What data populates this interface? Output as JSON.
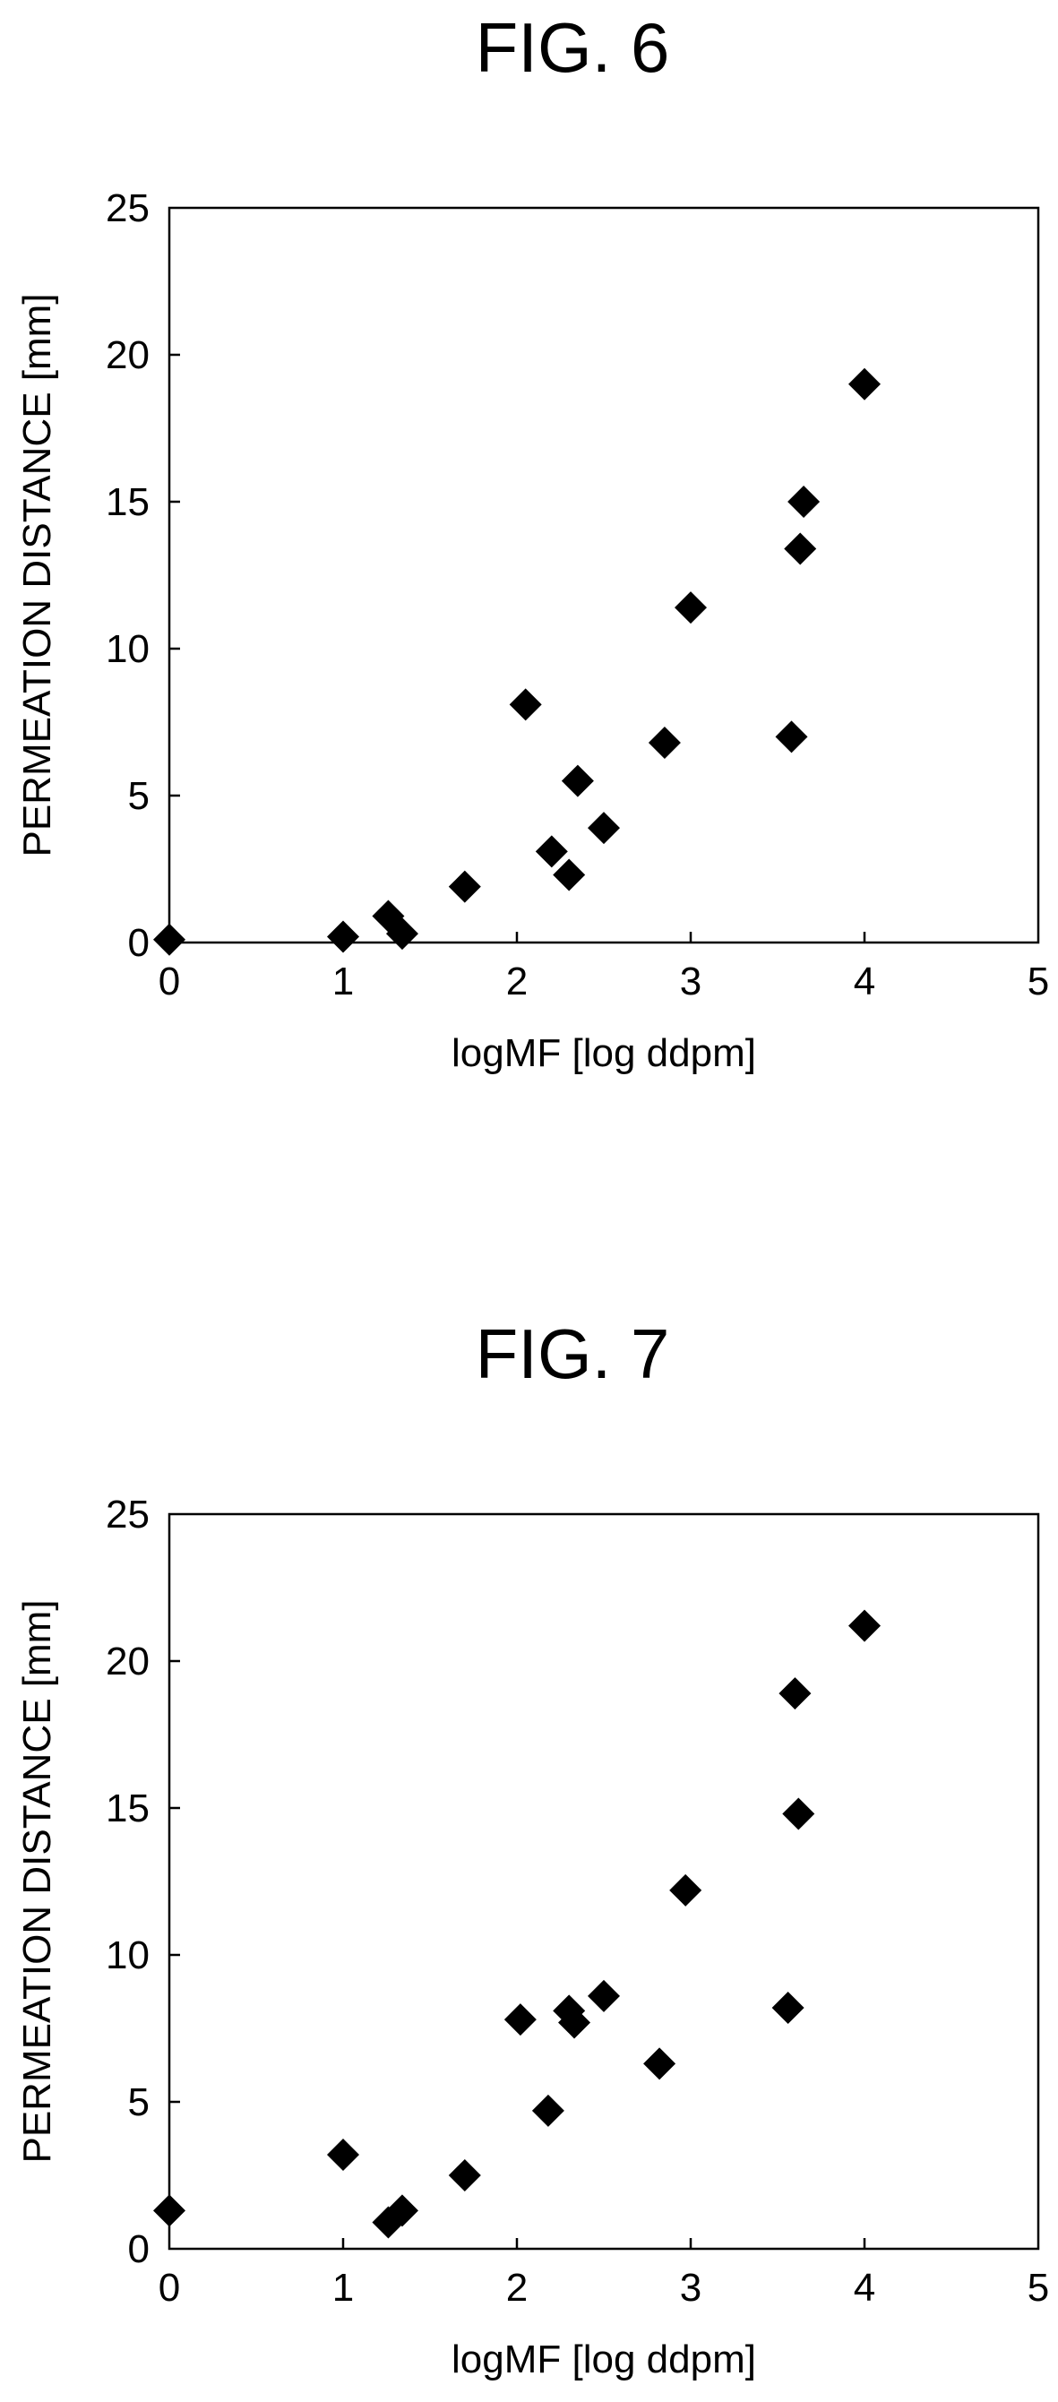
{
  "chart_data": [
    {
      "type": "scatter",
      "title": "FIG. 6",
      "xlabel": "logMF [log ddpm]",
      "ylabel": "PERMEATION DISTANCE [mm]",
      "xlim": [
        0,
        5
      ],
      "ylim": [
        0,
        25
      ],
      "x_ticks": [
        "0",
        "1",
        "2",
        "3",
        "4",
        "5"
      ],
      "y_ticks": [
        "0",
        "5",
        "10",
        "15",
        "20",
        "25"
      ],
      "marker": "diamond",
      "marker_color": "#000000",
      "grid": false,
      "points": [
        {
          "x": 0.0,
          "y": 0.1
        },
        {
          "x": 1.0,
          "y": 0.2
        },
        {
          "x": 1.26,
          "y": 0.9
        },
        {
          "x": 1.34,
          "y": 0.3
        },
        {
          "x": 1.7,
          "y": 1.9
        },
        {
          "x": 2.05,
          "y": 8.1
        },
        {
          "x": 2.2,
          "y": 3.1
        },
        {
          "x": 2.3,
          "y": 2.3
        },
        {
          "x": 2.35,
          "y": 5.5
        },
        {
          "x": 2.5,
          "y": 3.9
        },
        {
          "x": 2.85,
          "y": 6.8
        },
        {
          "x": 3.0,
          "y": 11.4
        },
        {
          "x": 3.58,
          "y": 7.0
        },
        {
          "x": 3.63,
          "y": 13.4
        },
        {
          "x": 3.65,
          "y": 15.0
        },
        {
          "x": 4.0,
          "y": 19.0
        }
      ]
    },
    {
      "type": "scatter",
      "title": "FIG. 7",
      "xlabel": "logMF [log ddpm]",
      "ylabel": "PERMEATION DISTANCE [mm]",
      "xlim": [
        0,
        5
      ],
      "ylim": [
        0,
        25
      ],
      "x_ticks": [
        "0",
        "1",
        "2",
        "3",
        "4",
        "5"
      ],
      "y_ticks": [
        "0",
        "5",
        "10",
        "15",
        "20",
        "25"
      ],
      "marker": "diamond",
      "marker_color": "#000000",
      "grid": false,
      "points": [
        {
          "x": 0.0,
          "y": 1.3
        },
        {
          "x": 1.0,
          "y": 3.2
        },
        {
          "x": 1.26,
          "y": 0.9
        },
        {
          "x": 1.34,
          "y": 1.3
        },
        {
          "x": 1.7,
          "y": 2.5
        },
        {
          "x": 2.02,
          "y": 7.8
        },
        {
          "x": 2.18,
          "y": 4.7
        },
        {
          "x": 2.3,
          "y": 8.1
        },
        {
          "x": 2.33,
          "y": 7.7
        },
        {
          "x": 2.5,
          "y": 8.6
        },
        {
          "x": 2.82,
          "y": 6.3
        },
        {
          "x": 2.97,
          "y": 12.2
        },
        {
          "x": 3.56,
          "y": 8.2
        },
        {
          "x": 3.6,
          "y": 18.9
        },
        {
          "x": 3.62,
          "y": 14.8
        },
        {
          "x": 4.0,
          "y": 21.2
        }
      ]
    }
  ]
}
